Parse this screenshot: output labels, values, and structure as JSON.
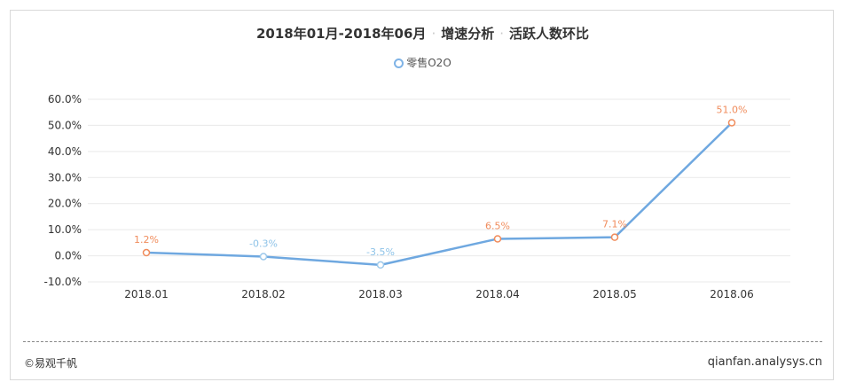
{
  "header": {
    "title_part1": "2018年01月-2018年06月",
    "title_part2": "增速分析",
    "title_part3": "活跃人数环比",
    "separator": "·"
  },
  "footer": {
    "source": "©易观千帆",
    "site": "qianfan.analysys.cn"
  },
  "colors": {
    "line": "#6fa8e0",
    "positive_label": "#f08c5c",
    "negative_label": "#8ec3e8",
    "grid": "#e9e9e9"
  },
  "chart_data": {
    "type": "line",
    "categories": [
      "2018.01",
      "2018.02",
      "2018.03",
      "2018.04",
      "2018.05",
      "2018.06"
    ],
    "series": [
      {
        "name": "零售O2O",
        "values": [
          1.2,
          -0.3,
          -3.5,
          6.5,
          7.1,
          51.0
        ],
        "labels": [
          "1.2%",
          "-0.3%",
          "-3.5%",
          "6.5%",
          "7.1%",
          "51.0%"
        ]
      }
    ],
    "y_ticks": [
      "60.0%",
      "50.0%",
      "40.0%",
      "30.0%",
      "20.0%",
      "10.0%",
      "0.0%",
      "-10.0%"
    ],
    "ylim": [
      -10,
      60
    ],
    "grid": true,
    "legend_position": "top-center"
  }
}
